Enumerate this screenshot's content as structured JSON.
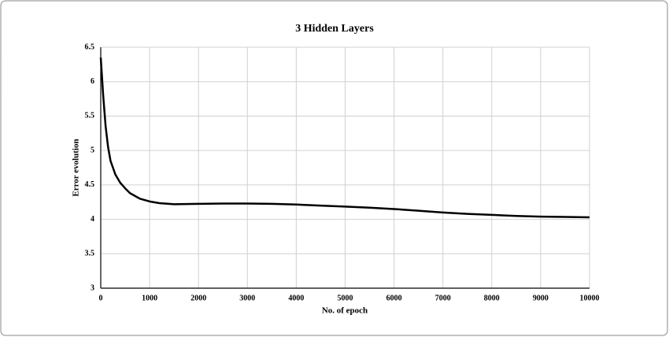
{
  "chart_data": {
    "type": "line",
    "title": "3 Hidden Layers",
    "x_label": "No. of epoch",
    "y_label": "Error evolution",
    "x": [
      0,
      50,
      100,
      150,
      200,
      300,
      400,
      500,
      600,
      800,
      1000,
      1200,
      1500,
      2000,
      2500,
      3000,
      3500,
      4000,
      4500,
      5000,
      5500,
      6000,
      6500,
      7000,
      7500,
      8000,
      8500,
      9000,
      9500,
      10000
    ],
    "values": [
      6.35,
      5.8,
      5.35,
      5.05,
      4.85,
      4.65,
      4.53,
      4.45,
      4.38,
      4.3,
      4.26,
      4.235,
      4.22,
      4.225,
      4.23,
      4.23,
      4.225,
      4.215,
      4.2,
      4.185,
      4.17,
      4.15,
      4.125,
      4.1,
      4.08,
      4.065,
      4.05,
      4.04,
      4.035,
      4.03
    ],
    "color": "#000000",
    "xlim": [
      0,
      10000
    ],
    "xticks": [
      0,
      1000,
      2000,
      3000,
      4000,
      5000,
      6000,
      7000,
      8000,
      9000,
      10000
    ],
    "ylim": [
      3,
      6.5
    ],
    "yticks": [
      3,
      3.5,
      4,
      4.5,
      5,
      5.5,
      6,
      6.5
    ],
    "grid": true
  }
}
